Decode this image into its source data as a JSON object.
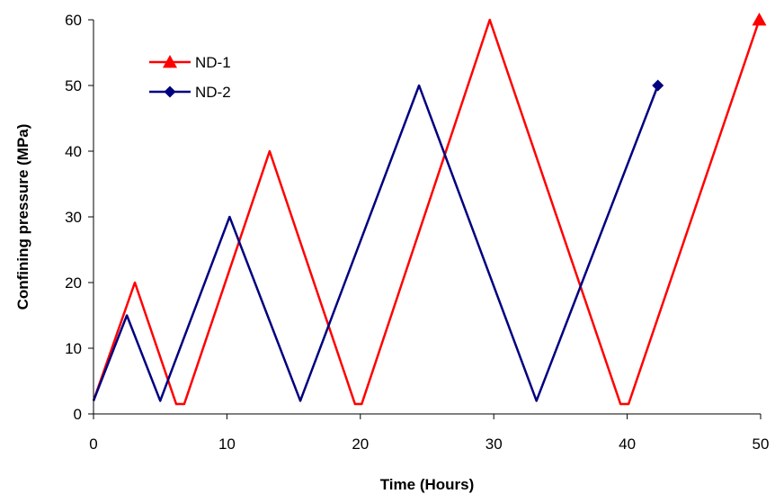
{
  "chart_data": {
    "type": "line",
    "title": "",
    "xlabel": "Time (Hours)",
    "ylabel": "Confining pressure (MPa)",
    "xlim": [
      0,
      50
    ],
    "ylim": [
      0,
      60
    ],
    "xticks": [
      0,
      10,
      20,
      30,
      40,
      50
    ],
    "yticks": [
      0,
      10,
      20,
      30,
      40,
      50,
      60
    ],
    "grid": false,
    "legend_position": "top-left",
    "series": [
      {
        "name": "ND-1",
        "color": "#ff0000",
        "marker": "triangle",
        "x": [
          0,
          3.1,
          6.2,
          6.8,
          13.2,
          19.6,
          20.1,
          29.7,
          39.5,
          40.1,
          49.9
        ],
        "y": [
          2,
          20,
          1.5,
          1.5,
          40,
          1.5,
          1.5,
          60,
          1.5,
          1.5,
          60
        ]
      },
      {
        "name": "ND-2",
        "color": "#000080",
        "marker": "diamond",
        "x": [
          0,
          2.5,
          5,
          10.2,
          15.5,
          24.4,
          33.2,
          42.3
        ],
        "y": [
          2,
          15,
          2,
          30,
          2,
          50,
          2,
          50
        ]
      }
    ]
  }
}
